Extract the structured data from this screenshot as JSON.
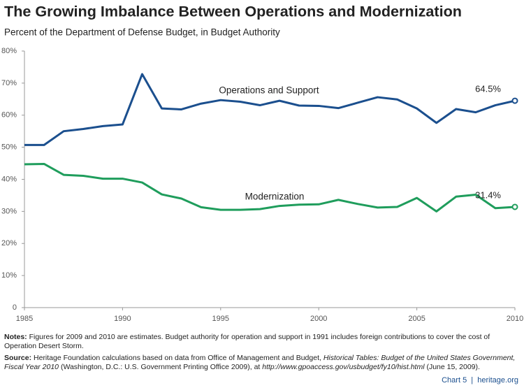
{
  "chart_data": {
    "type": "line",
    "title": "The Growing Imbalance Between Operations and Modernization",
    "subtitle": "Percent of the Department of Defense Budget, in Budget Authority",
    "x": [
      1985,
      1986,
      1987,
      1988,
      1989,
      1990,
      1991,
      1992,
      1993,
      1994,
      1995,
      1996,
      1997,
      1998,
      1999,
      2000,
      2001,
      2002,
      2003,
      2004,
      2005,
      2006,
      2007,
      2008,
      2009,
      2010
    ],
    "series": [
      {
        "name": "Operations and Support",
        "color": "#1b4f8e",
        "values": [
          50.7,
          50.7,
          55,
          55.7,
          56.6,
          57.1,
          72.8,
          62.1,
          61.8,
          63.6,
          64.7,
          64.2,
          63.1,
          64.5,
          63,
          62.9,
          62.2,
          63.9,
          65.6,
          64.9,
          62.1,
          57.6,
          61.9,
          60.9,
          63.1,
          64.5
        ],
        "value_labels": [
          null,
          null,
          null,
          null,
          null,
          null,
          null,
          null,
          null,
          null,
          null,
          null,
          null,
          null,
          null,
          null,
          null,
          null,
          null,
          null,
          null,
          null,
          null,
          null,
          null,
          "64.5%"
        ]
      },
      {
        "name": "Modernization",
        "color": "#1f9d5c",
        "values": [
          44.7,
          44.8,
          41.4,
          41.1,
          40.2,
          40.2,
          39,
          35.3,
          34,
          31.3,
          30.5,
          30.5,
          30.7,
          31.7,
          32.1,
          32.2,
          33.6,
          32.3,
          31.2,
          31.4,
          34.2,
          30,
          34.6,
          35.2,
          31,
          31.4
        ],
        "value_labels": [
          null,
          null,
          null,
          null,
          null,
          null,
          null,
          null,
          null,
          null,
          null,
          null,
          null,
          null,
          null,
          null,
          null,
          null,
          null,
          null,
          null,
          null,
          null,
          null,
          null,
          "31.4%"
        ]
      }
    ],
    "xlim": [
      1985,
      2010
    ],
    "xticks": [
      1985,
      1990,
      1995,
      2000,
      2005,
      2010
    ],
    "ylim": [
      0,
      80
    ],
    "yticks": [
      0,
      {
        "value": 10,
        "label": "10%"
      },
      {
        "value": 20,
        "label": "20%"
      },
      {
        "value": 30,
        "label": "30%"
      },
      {
        "value": 40,
        "label": "40%"
      },
      {
        "value": 50,
        "label": "50%"
      },
      {
        "value": 60,
        "label": "60%"
      },
      {
        "value": 70,
        "label": "70%"
      },
      {
        "value": 80,
        "label": "80%"
      }
    ],
    "grid": false
  },
  "notes": {
    "label": "Notes:",
    "text": "Figures for 2009 and 2010 are estimates. Budget authority for operation and support in 1991 includes foreign contributions to cover the cost of Operation Desert Storm."
  },
  "source": {
    "label": "Source:",
    "segments": [
      {
        "text": "Heritage Foundation calculations based on data from Office of Management and Budget, ",
        "italic": false
      },
      {
        "text": "Historical Tables: Budget of the United States Government, Fiscal Year 2010",
        "italic": true
      },
      {
        "text": " (Washington, D.C.: U.S. Government Printing Office 2009), at ",
        "italic": false
      },
      {
        "text": "http://www.gpoaccess.gov/usbudget/fy10/hist.html",
        "italic": true
      },
      {
        "text": " (June 15, 2009).",
        "italic": false
      }
    ]
  },
  "footer": {
    "chart_label": "Chart 5",
    "site": "heritage.org"
  }
}
